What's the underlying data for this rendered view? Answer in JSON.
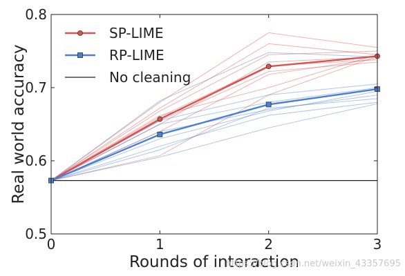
{
  "chart_data": {
    "type": "line",
    "title": "",
    "xlabel": "Rounds of interaction",
    "ylabel": "Real world accuracy",
    "x": [
      0,
      1,
      2,
      3
    ],
    "xlim": [
      0,
      3
    ],
    "ylim": [
      0.5,
      0.8
    ],
    "xticks": [
      "0",
      "1",
      "2",
      "3"
    ],
    "yticks": [
      "0.5",
      "0.6",
      "0.7",
      "0.8"
    ],
    "grid": false,
    "legend": "top-left",
    "series": [
      {
        "name": "SP-LIME",
        "color": "#d9534f",
        "marker": "circle",
        "values": [
          0.573,
          0.657,
          0.729,
          0.743
        ]
      },
      {
        "name": "RP-LIME",
        "color": "#4a7fd4",
        "marker": "square",
        "values": [
          0.573,
          0.636,
          0.677,
          0.698
        ]
      },
      {
        "name": "No cleaning",
        "color": "#222222",
        "marker": "none",
        "values": [
          0.573,
          0.573,
          0.573,
          0.573
        ]
      }
    ],
    "individual_runs": {
      "SP-LIME": [
        [
          0.573,
          0.68,
          0.775,
          0.755
        ],
        [
          0.573,
          0.672,
          0.76,
          0.745
        ],
        [
          0.573,
          0.668,
          0.745,
          0.75
        ],
        [
          0.573,
          0.66,
          0.73,
          0.738
        ],
        [
          0.573,
          0.655,
          0.722,
          0.735
        ],
        [
          0.573,
          0.65,
          0.735,
          0.742
        ],
        [
          0.573,
          0.64,
          0.718,
          0.74
        ],
        [
          0.573,
          0.662,
          0.7,
          0.745
        ],
        [
          0.573,
          0.607,
          0.69,
          0.743
        ]
      ],
      "RP-LIME": [
        [
          0.573,
          0.682,
          0.748,
          0.742
        ],
        [
          0.573,
          0.655,
          0.69,
          0.705
        ],
        [
          0.573,
          0.65,
          0.68,
          0.7
        ],
        [
          0.573,
          0.64,
          0.67,
          0.69
        ],
        [
          0.573,
          0.63,
          0.668,
          0.695
        ],
        [
          0.573,
          0.62,
          0.662,
          0.68
        ],
        [
          0.573,
          0.615,
          0.672,
          0.685
        ],
        [
          0.573,
          0.605,
          0.645,
          0.678
        ]
      ]
    }
  },
  "watermark": "https://blog.csdn.net/weixin_43357695"
}
